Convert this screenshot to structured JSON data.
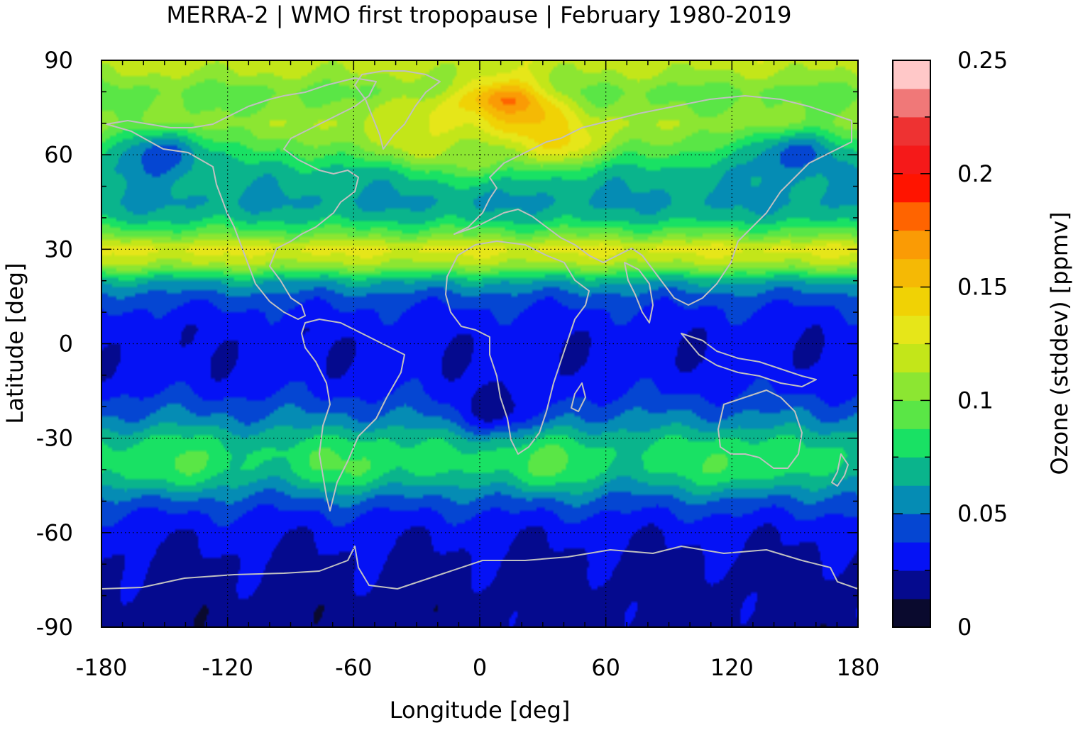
{
  "title": "MERRA-2 | WMO first tropopause | February 1980-2019",
  "chart_data": {
    "type": "heatmap",
    "title": "MERRA-2 | WMO first tropopause | February 1980-2019",
    "xlabel": "Longitude [deg]",
    "ylabel": "Latitude [deg]",
    "colorbar_label": "Ozone (stddev) [ppmv]",
    "xlim": [
      -180,
      180
    ],
    "ylim": [
      -90,
      90
    ],
    "x_ticks": [
      "-180",
      "-120",
      "-60",
      "0",
      "60",
      "120",
      "180"
    ],
    "y_ticks": [
      "-90",
      "-60",
      "-30",
      "0",
      "30",
      "60",
      "90"
    ],
    "grid": true,
    "colorbar": {
      "range": [
        0,
        0.25
      ],
      "step": 0.0125,
      "tick_labels": [
        "0",
        "0.05",
        "0.1",
        "0.15",
        "0.2",
        "0.25"
      ],
      "colors": [
        "#0a0a2e",
        "#050a8e",
        "#0512f5",
        "#0546d2",
        "#058cb4",
        "#0ab48c",
        "#19e164",
        "#5ae646",
        "#8ce632",
        "#c3e619",
        "#e6e619",
        "#f0d205",
        "#f5b905",
        "#fa9b05",
        "#ff6400",
        "#ff1400",
        "#f51919",
        "#ee3232",
        "#f07878",
        "#ffc8c8"
      ]
    },
    "zonal_profile": {
      "lat": [
        -90,
        -80,
        -70,
        -60,
        -55,
        -50,
        -45,
        -40,
        -35,
        -30,
        -25,
        -20,
        -15,
        -10,
        -5,
        0,
        5,
        10,
        15,
        20,
        25,
        30,
        35,
        40,
        45,
        50,
        55,
        60,
        65,
        70,
        75,
        80,
        85,
        90
      ],
      "value": [
        0.018,
        0.02,
        0.022,
        0.028,
        0.035,
        0.045,
        0.06,
        0.075,
        0.078,
        0.07,
        0.055,
        0.045,
        0.035,
        0.03,
        0.028,
        0.028,
        0.03,
        0.035,
        0.045,
        0.065,
        0.11,
        0.13,
        0.095,
        0.07,
        0.06,
        0.065,
        0.07,
        0.085,
        0.1,
        0.11,
        0.1,
        0.095,
        0.11,
        0.12
      ]
    },
    "anomalies": [
      {
        "lon": 10,
        "lat": 75,
        "value": 0.2
      },
      {
        "lon": 20,
        "lat": 70,
        "value": 0.16
      },
      {
        "lon": -10,
        "lat": 70,
        "value": 0.14
      },
      {
        "lon": 40,
        "lat": 65,
        "value": 0.14
      },
      {
        "lon": -30,
        "lat": 65,
        "value": 0.12
      },
      {
        "lon": 0,
        "lat": 60,
        "value": 0.11
      },
      {
        "lon": -45,
        "lat": 70,
        "value": 0.12
      },
      {
        "lon": 150,
        "lat": 60,
        "value": 0.04
      },
      {
        "lon": -150,
        "lat": 60,
        "value": 0.04
      },
      {
        "lon": -150,
        "lat": -38,
        "value": 0.09
      },
      {
        "lon": -60,
        "lat": -38,
        "value": 0.09
      },
      {
        "lon": 30,
        "lat": -38,
        "value": 0.09
      },
      {
        "lon": 120,
        "lat": -38,
        "value": 0.09
      },
      {
        "lon": 10,
        "lat": -20,
        "value": 0.018
      }
    ]
  }
}
